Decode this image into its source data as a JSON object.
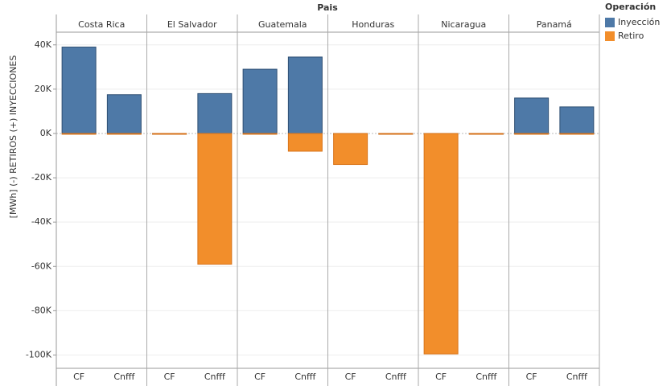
{
  "chart_data": {
    "type": "bar",
    "facet_title": "Pais",
    "facets": [
      "Costa Rica",
      "El Salvador",
      "Guatemala",
      "Honduras",
      "Nicaragua",
      "Panamá"
    ],
    "categories": [
      "CF",
      "Cnfff"
    ],
    "y_label": "[MWh] (-) RETIROS    (+) INYECCIONES",
    "legend_title": "Operación",
    "series": [
      {
        "name": "Inyección",
        "color": "#4e79a7",
        "values": [
          [
            39000,
            17500
          ],
          [
            0,
            18000
          ],
          [
            29000,
            34500
          ],
          [
            0,
            0
          ],
          [
            0,
            0
          ],
          [
            16000,
            12000
          ]
        ]
      },
      {
        "name": "Retiro",
        "color": "#f28e2b",
        "values": [
          [
            0,
            0
          ],
          [
            0,
            -59000
          ],
          [
            0,
            -8000
          ],
          [
            -14000,
            0
          ],
          [
            -99500,
            0
          ],
          [
            0,
            0
          ]
        ]
      }
    ],
    "ylim": [
      -106000,
      45000
    ],
    "yticks": [
      {
        "value": -100000,
        "label": "-100K"
      },
      {
        "value": -80000,
        "label": "-80K"
      },
      {
        "value": -60000,
        "label": "-60K"
      },
      {
        "value": -40000,
        "label": "-40K"
      },
      {
        "value": -20000,
        "label": "-20K"
      },
      {
        "value": 0,
        "label": "0K"
      },
      {
        "value": 20000,
        "label": "20K"
      },
      {
        "value": 40000,
        "label": "40K"
      }
    ],
    "grid": true
  }
}
